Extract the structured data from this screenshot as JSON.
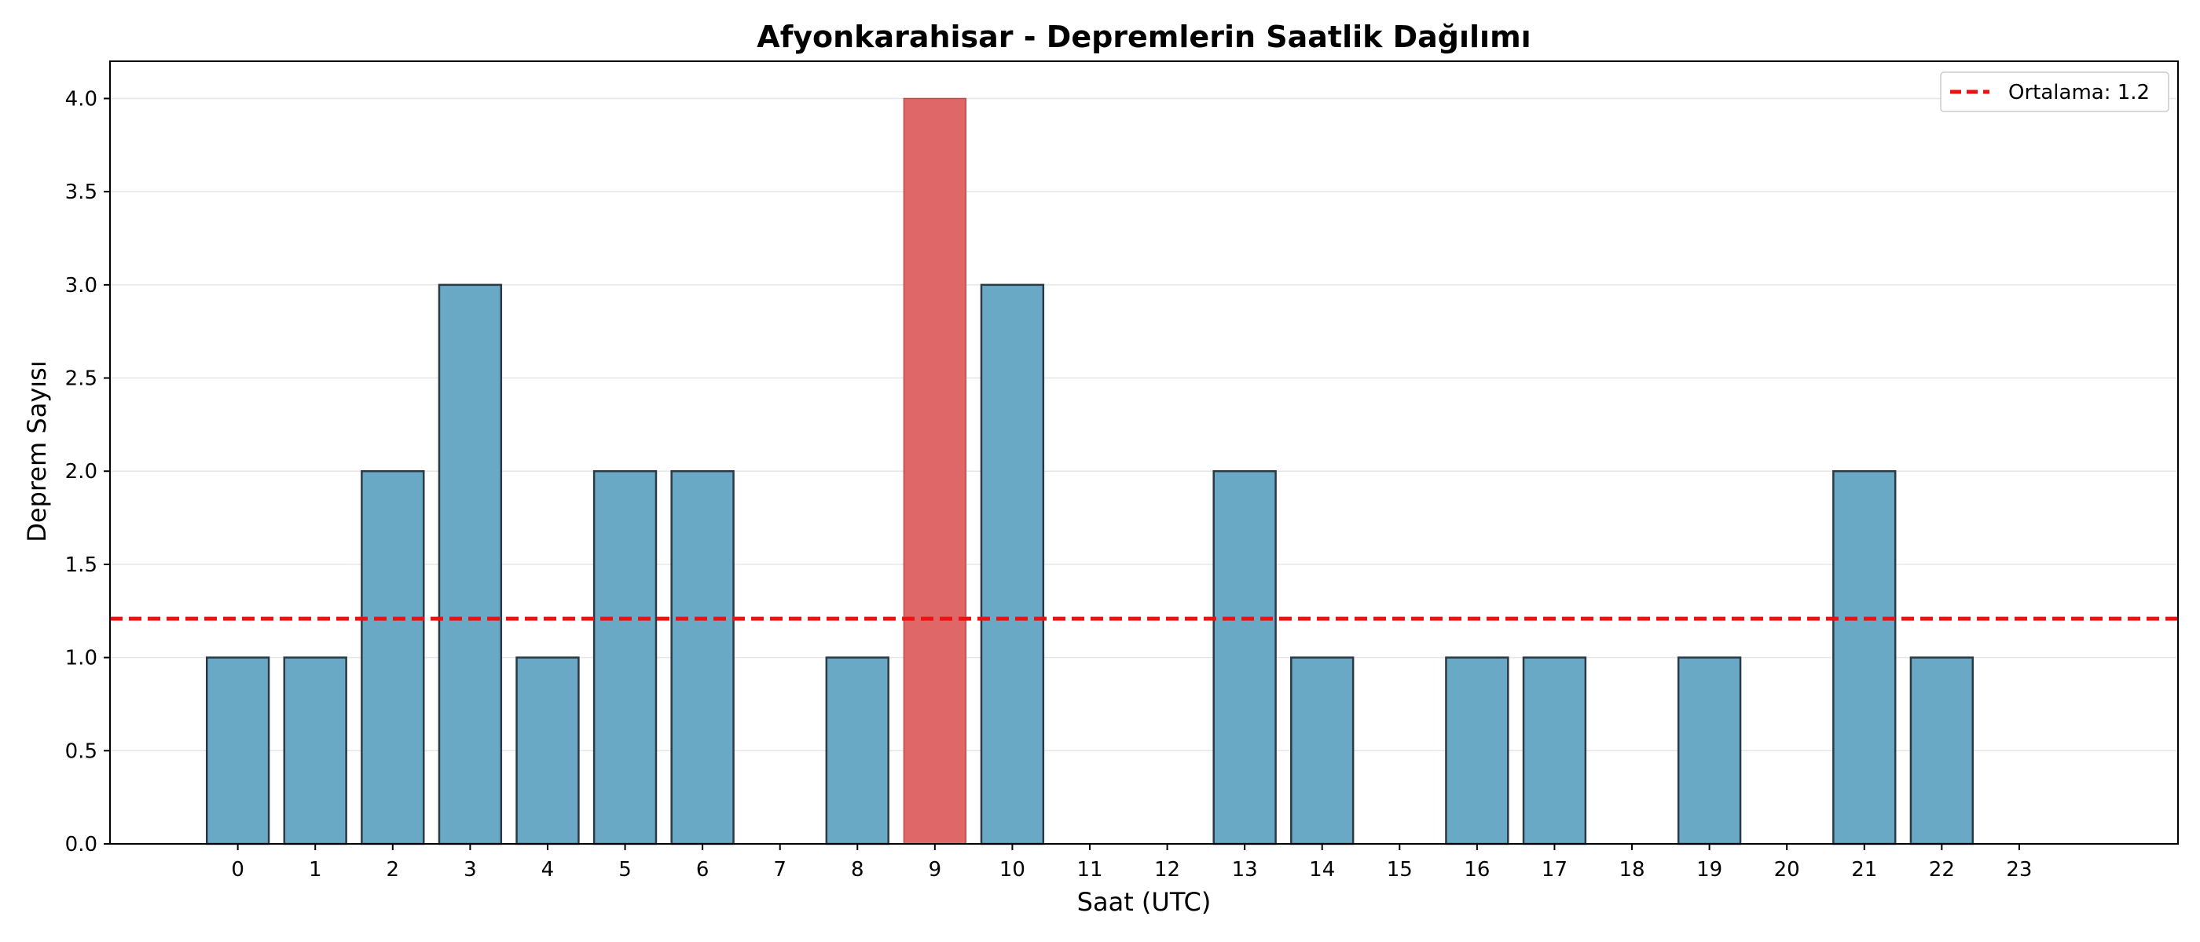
{
  "chart_data": {
    "type": "bar",
    "title": "Afyonkarahisar - Depremlerin Saatlik Dağılımı",
    "xlabel": "Saat (UTC)",
    "ylabel": "Deprem Sayısı",
    "categories": [
      "0",
      "1",
      "2",
      "3",
      "4",
      "5",
      "6",
      "7",
      "8",
      "9",
      "10",
      "11",
      "12",
      "13",
      "14",
      "15",
      "16",
      "17",
      "18",
      "19",
      "20",
      "21",
      "22",
      "23"
    ],
    "values": [
      1,
      1,
      2,
      3,
      1,
      2,
      2,
      0,
      1,
      4,
      3,
      0,
      0,
      2,
      1,
      0,
      1,
      1,
      0,
      1,
      0,
      2,
      1,
      0
    ],
    "highlight_index": 9,
    "ylim": [
      0,
      4.2
    ],
    "yticks": [
      0.0,
      0.5,
      1.0,
      1.5,
      2.0,
      2.5,
      3.0,
      3.5,
      4.0
    ],
    "ytick_labels": [
      "0.0",
      "0.5",
      "1.0",
      "1.5",
      "2.0",
      "2.5",
      "3.0",
      "3.5",
      "4.0"
    ],
    "reference_line": {
      "value": 1.2083,
      "label": "Ortalama: 1.2",
      "style": "dashed"
    },
    "grid": "y",
    "legend_position": "top-right",
    "colors": {
      "bar": "#6aa9c6",
      "highlight": "#e06767",
      "bar_edge": "#2b3a45",
      "reference_line": "#ee1111",
      "grid": "#e6e6e6"
    }
  }
}
